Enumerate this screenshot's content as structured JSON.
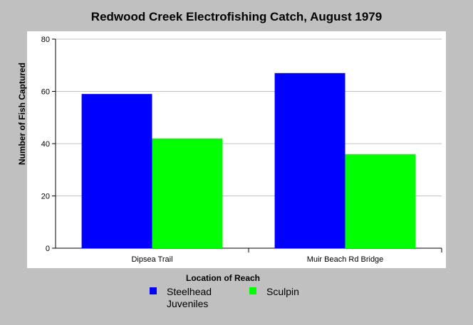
{
  "chart_data": {
    "type": "bar",
    "title": "Redwood Creek Electrofishing Catch, August 1979",
    "xlabel": "Location of Reach",
    "ylabel": "Number of Fish Captured",
    "categories": [
      "Dipsea Trail",
      "Muir Beach Rd Bridge"
    ],
    "series": [
      {
        "name": "Steelhead Juveniles",
        "values": [
          59,
          67
        ],
        "color": "#0000ff"
      },
      {
        "name": "Sculpin",
        "values": [
          42,
          36
        ],
        "color": "#00ff00"
      }
    ],
    "ylim": [
      0,
      80
    ],
    "yticks": [
      0,
      20,
      40,
      60,
      80
    ],
    "grid": true,
    "legend_position": "bottom"
  }
}
